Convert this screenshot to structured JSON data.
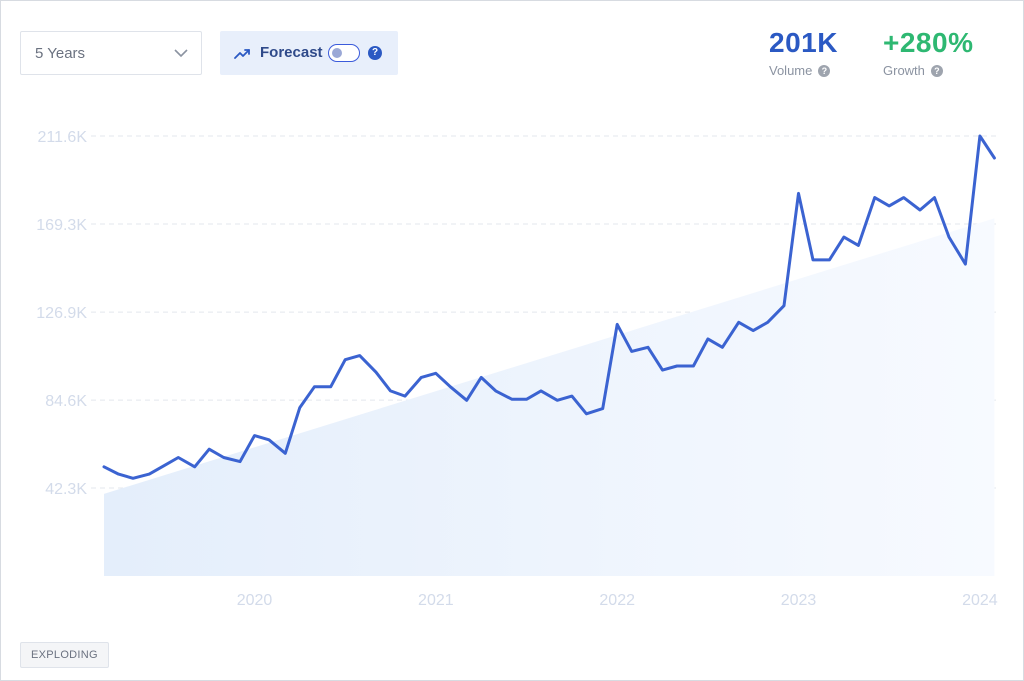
{
  "controls": {
    "period_select": {
      "value": "5 Years"
    },
    "forecast": {
      "label": "Forecast",
      "enabled": false,
      "help": "?"
    }
  },
  "metrics": {
    "volume": {
      "value": "201K",
      "label": "Volume",
      "help": "?",
      "color": "#2b59c3"
    },
    "growth": {
      "value": "+280%",
      "label": "Growth",
      "help": "?",
      "color": "#2eb872"
    }
  },
  "badge": {
    "label": "EXPLODING"
  },
  "colors": {
    "line": "#3b63d1",
    "trend_fill": "#e8f1fc",
    "grid": "#e3e7ee",
    "tick": "#d3dbea"
  },
  "chart_data": {
    "type": "line",
    "title": "",
    "xlabel": "",
    "ylabel": "",
    "y_ticks": [
      "42.3K",
      "84.6K",
      "126.9K",
      "169.3K",
      "211.6K"
    ],
    "y_tick_values": [
      42300,
      84600,
      126900,
      169300,
      211600
    ],
    "x_ticks": [
      "2020",
      "2021",
      "2022",
      "2023",
      "2024"
    ],
    "x_tick_values": [
      2020.0,
      2021.0,
      2022.0,
      2023.0,
      2024.0
    ],
    "xlim": [
      2019.17,
      2024.1
    ],
    "ylim": [
      0,
      211600
    ],
    "grid": "horizontal dashed",
    "series": [
      {
        "type": "line",
        "x": [
          2019.17,
          2019.25,
          2019.33,
          2019.42,
          2019.5,
          2019.58,
          2019.67,
          2019.75,
          2019.83,
          2019.92,
          2020.0,
          2020.08,
          2020.17,
          2020.25,
          2020.33,
          2020.42,
          2020.5,
          2020.58,
          2020.67,
          2020.75,
          2020.83,
          2020.92,
          2021.0,
          2021.08,
          2021.17,
          2021.25,
          2021.33,
          2021.42,
          2021.5,
          2021.58,
          2021.67,
          2021.75,
          2021.83,
          2021.92,
          2022.0,
          2022.08,
          2022.17,
          2022.25,
          2022.33,
          2022.42,
          2022.5,
          2022.58,
          2022.67,
          2022.75,
          2022.83,
          2022.92,
          2023.0,
          2023.08,
          2023.17,
          2023.25,
          2023.33,
          2023.42,
          2023.5,
          2023.58,
          2023.67,
          2023.75,
          2023.83,
          2023.92,
          2024.0,
          2024.08
        ],
        "values": [
          52500,
          49000,
          47000,
          49000,
          53000,
          57000,
          52500,
          61000,
          57000,
          55000,
          67500,
          65500,
          59000,
          81000,
          91000,
          91000,
          104000,
          106000,
          98000,
          89000,
          86500,
          95500,
          97500,
          91000,
          84500,
          95500,
          89000,
          85000,
          85000,
          89000,
          84500,
          86500,
          78000,
          80500,
          121000,
          108000,
          110000,
          99000,
          101000,
          101000,
          114000,
          110000,
          122000,
          118000,
          122000,
          130000,
          184000,
          152000,
          152000,
          163000,
          159000,
          182000,
          178000,
          182000,
          176000,
          182000,
          163000,
          150000,
          211600,
          201000
        ]
      },
      {
        "type": "area",
        "name": "",
        "x": [
          2019.17,
          2024.08
        ],
        "values": [
          39500,
          172000
        ]
      }
    ]
  }
}
